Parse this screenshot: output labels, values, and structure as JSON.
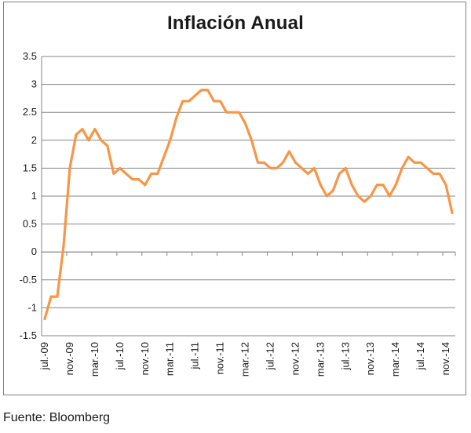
{
  "chart_data": {
    "type": "line",
    "title": "Inflación Anual",
    "xlabel": "",
    "ylabel": "",
    "ylim": [
      -1.5,
      3.5
    ],
    "yticks": [
      "3.5",
      "3",
      "2.5",
      "2",
      "1.5",
      "1",
      "0.5",
      "0",
      "-0.5",
      "-1",
      "-1.5"
    ],
    "y_tick_values": [
      3.5,
      3,
      2.5,
      2,
      1.5,
      1,
      0.5,
      0,
      -0.5,
      -1,
      -1.5
    ],
    "grid": true,
    "legend": "none",
    "line_color": "#F79646",
    "x": [
      "jul.-09",
      "ago.-09",
      "sep.-09",
      "oct.-09",
      "nov.-09",
      "dic.-09",
      "ene.-10",
      "feb.-10",
      "mar.-10",
      "abr.-10",
      "may.-10",
      "jun.-10",
      "jul.-10",
      "ago.-10",
      "sep.-10",
      "oct.-10",
      "nov.-10",
      "dic.-10",
      "ene.-11",
      "feb.-11",
      "mar.-11",
      "abr.-11",
      "may.-11",
      "jun.-11",
      "jul.-11",
      "ago.-11",
      "sep.-11",
      "oct.-11",
      "nov.-11",
      "dic.-11",
      "ene.-12",
      "feb.-12",
      "mar.-12",
      "abr.-12",
      "may.-12",
      "jun.-12",
      "jul.-12",
      "ago.-12",
      "sep.-12",
      "oct.-12",
      "nov.-12",
      "dic.-12",
      "ene.-13",
      "feb.-13",
      "mar.-13",
      "abr.-13",
      "may.-13",
      "jun.-13",
      "jul.-13",
      "ago.-13",
      "sep.-13",
      "oct.-13",
      "nov.-13",
      "dic.-13",
      "ene.-14",
      "feb.-14",
      "mar.-14",
      "abr.-14",
      "may.-14",
      "jun.-14",
      "jul.-14",
      "ago.-14",
      "sep.-14",
      "oct.-14",
      "nov.-14",
      "dic.-14"
    ],
    "x_tick_labels": [
      {
        "index": 0,
        "label": "jul.-09"
      },
      {
        "index": 4,
        "label": "nov.-09"
      },
      {
        "index": 8,
        "label": "mar.-10"
      },
      {
        "index": 12,
        "label": "jul.-10"
      },
      {
        "index": 16,
        "label": "nov.-10"
      },
      {
        "index": 20,
        "label": "mar.-11"
      },
      {
        "index": 24,
        "label": "jul.-11"
      },
      {
        "index": 28,
        "label": "nov.-11"
      },
      {
        "index": 32,
        "label": "mar.-12"
      },
      {
        "index": 36,
        "label": "jul.-12"
      },
      {
        "index": 40,
        "label": "nov.-12"
      },
      {
        "index": 44,
        "label": "mar.-13"
      },
      {
        "index": 48,
        "label": "jul.-13"
      },
      {
        "index": 52,
        "label": "nov.-13"
      },
      {
        "index": 56,
        "label": "mar.-14"
      },
      {
        "index": 60,
        "label": "jul.-14"
      },
      {
        "index": 64,
        "label": "nov.-14"
      }
    ],
    "series": [
      {
        "values": [
          -1.2,
          -0.8,
          -0.8,
          0.1,
          1.5,
          2.1,
          2.2,
          2.0,
          2.2,
          2.0,
          1.9,
          1.4,
          1.5,
          1.4,
          1.3,
          1.3,
          1.2,
          1.4,
          1.4,
          1.7,
          2.0,
          2.4,
          2.7,
          2.7,
          2.8,
          2.9,
          2.9,
          2.7,
          2.7,
          2.5,
          2.5,
          2.5,
          2.3,
          2.0,
          1.6,
          1.6,
          1.5,
          1.5,
          1.6,
          1.8,
          1.6,
          1.5,
          1.4,
          1.5,
          1.2,
          1.0,
          1.1,
          1.4,
          1.5,
          1.2,
          1.0,
          0.9,
          1.0,
          1.2,
          1.2,
          1.0,
          1.2,
          1.5,
          1.7,
          1.6,
          1.6,
          1.5,
          1.4,
          1.4,
          1.2,
          0.7
        ]
      }
    ]
  },
  "footer": {
    "source": "Fuente: Bloomberg"
  }
}
